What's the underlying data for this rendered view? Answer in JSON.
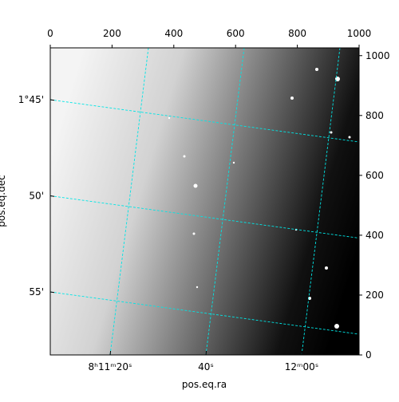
{
  "chart_data": {
    "type": "image",
    "xlabel": "pos.eq.ra",
    "ylabel": "pos.eq.dec",
    "xlim": [
      0,
      1000
    ],
    "ylim": [
      0,
      1026
    ],
    "x2ticks": [
      0,
      200,
      400,
      600,
      800,
      1000
    ],
    "y2ticks": [
      0,
      200,
      400,
      600,
      800,
      1000
    ],
    "ra_ticks": [
      {
        "value": 29480,
        "label": "8ʰ11ᵐ20ˢ"
      },
      {
        "value": 29500,
        "label": "40ˢ"
      },
      {
        "value": 29520,
        "label": "12ᵐ00ˢ"
      }
    ],
    "dec_ticks": [
      {
        "value": 105,
        "label": "1°45'"
      },
      {
        "value": 110,
        "label": "50'"
      },
      {
        "value": 115,
        "label": "55'"
      }
    ],
    "grid": true,
    "grid_color": "#00e5e5"
  }
}
